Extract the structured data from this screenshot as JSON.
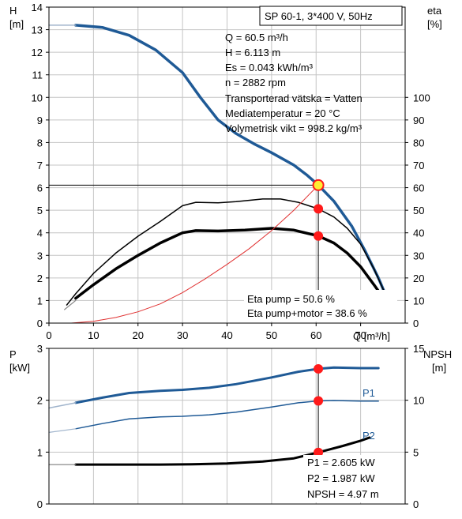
{
  "header": {
    "title": "SP 60-1, 3*400 V, 50Hz"
  },
  "operating_point": {
    "lines": [
      "Q = 60.5 m³/h",
      "H = 6.113 m",
      "Es = 0.043 kWh/m³",
      "n = 2882 rpm",
      "Transporterad vätska = Vatten",
      "Mediatemperatur = 20 °C",
      "Volymetrisk vikt = 998.2 kg/m³"
    ],
    "eta_lines": [
      "Eta pump = 50.6 %",
      "Eta pump+motor = 38.6 %"
    ],
    "power_lines": [
      "P1 = 2.605 kW",
      "P2 = 1.987 kW",
      "NPSH = 4.97 m"
    ]
  },
  "colors": {
    "blue": "#1f5a96",
    "black": "#000000",
    "red_dot": "#ff1a1a",
    "thin_red": "#e03030",
    "yellow": "#ffee33",
    "grid": "#c4c4c4"
  },
  "chart_data": [
    {
      "type": "line",
      "title": "",
      "xlabel": "Q [m³/h]",
      "ylabel_left": [
        "H",
        "[m]"
      ],
      "ylabel_right": [
        "eta",
        "[%]"
      ],
      "xlim": [
        0,
        80
      ],
      "ylim_left": [
        0,
        14
      ],
      "ylim_right": [
        0,
        140
      ],
      "x_ticks": [
        0,
        10,
        20,
        30,
        40,
        50,
        60,
        70
      ],
      "y_left_ticks": [
        0,
        1,
        2,
        3,
        4,
        5,
        6,
        7,
        8,
        9,
        10,
        11,
        12,
        13,
        14
      ],
      "y_right_ticks": [
        0,
        10,
        20,
        30,
        40,
        50,
        60,
        70,
        80,
        90,
        100
      ],
      "grid": true,
      "series": [
        {
          "key": "head",
          "axis": "left",
          "color": "#1f5a96",
          "width": 3.5,
          "points": [
            [
              6,
              13.2
            ],
            [
              12,
              13.1
            ],
            [
              18,
              12.75
            ],
            [
              24,
              12.1
            ],
            [
              30,
              11.1
            ],
            [
              34,
              10.0
            ],
            [
              38,
              9.0
            ],
            [
              42,
              8.4
            ],
            [
              46,
              7.95
            ],
            [
              50,
              7.55
            ],
            [
              55,
              7.0
            ],
            [
              58,
              6.55
            ],
            [
              60.5,
              6.113
            ],
            [
              64,
              5.4
            ],
            [
              68,
              4.3
            ],
            [
              71,
              3.2
            ],
            [
              74,
              2.0
            ],
            [
              77,
              0.6
            ]
          ]
        },
        {
          "key": "head_stub",
          "axis": "left",
          "color": "#a0b4cc",
          "width": 1.5,
          "points": [
            [
              0,
              13.2
            ],
            [
              6,
              13.2
            ]
          ]
        },
        {
          "key": "eta_pump",
          "axis": "right",
          "color": "#000000",
          "width": 1.5,
          "points": [
            [
              4,
              8
            ],
            [
              6,
              13
            ],
            [
              10,
              22
            ],
            [
              15,
              31
            ],
            [
              20,
              38.5
            ],
            [
              25,
              45
            ],
            [
              30,
              52
            ],
            [
              33,
              53.5
            ],
            [
              38,
              53.3
            ],
            [
              42,
              53.8
            ],
            [
              48,
              55
            ],
            [
              52,
              55
            ],
            [
              56,
              53.5
            ],
            [
              60.5,
              50.6
            ],
            [
              64,
              47
            ],
            [
              67,
              42
            ],
            [
              70,
              35
            ],
            [
              73,
              24
            ],
            [
              76,
              11
            ]
          ]
        },
        {
          "key": "eta_pump_motor",
          "axis": "right",
          "color": "#000000",
          "width": 3.5,
          "points": [
            [
              6,
              11
            ],
            [
              10,
              17
            ],
            [
              15,
              24
            ],
            [
              20,
              30
            ],
            [
              25,
              35.5
            ],
            [
              30,
              40
            ],
            [
              33,
              41
            ],
            [
              38,
              40.8
            ],
            [
              44,
              41.2
            ],
            [
              50,
              42
            ],
            [
              55,
              41.2
            ],
            [
              60.5,
              38.6
            ],
            [
              64,
              35.5
            ],
            [
              67,
              31
            ],
            [
              70,
              25
            ],
            [
              73,
              17
            ],
            [
              75.5,
              10
            ]
          ]
        },
        {
          "key": "eta_stub",
          "axis": "right",
          "color": "#888888",
          "width": 1.2,
          "points": [
            [
              3.5,
              6
            ],
            [
              6,
              10
            ]
          ]
        },
        {
          "key": "system",
          "axis": "left",
          "color": "#e03030",
          "width": 1,
          "points": [
            [
              5,
              0.0
            ],
            [
              10,
              0.08
            ],
            [
              15,
              0.25
            ],
            [
              20,
              0.5
            ],
            [
              25,
              0.85
            ],
            [
              30,
              1.35
            ],
            [
              35,
              1.95
            ],
            [
              40,
              2.6
            ],
            [
              45,
              3.3
            ],
            [
              50,
              4.1
            ],
            [
              55,
              5.0
            ],
            [
              60.5,
              6.113
            ]
          ]
        }
      ],
      "markers": [
        {
          "axis": "left",
          "x": 60.5,
          "y": 6.113,
          "style": "ring"
        },
        {
          "axis": "right",
          "x": 60.5,
          "y": 50.6,
          "style": "dot"
        },
        {
          "axis": "right",
          "x": 60.5,
          "y": 38.6,
          "style": "dot"
        }
      ],
      "operating_line_h": 6.113,
      "operating_line_q": 60.5
    },
    {
      "type": "line",
      "title": "",
      "xlabel": "",
      "ylabel_left": [
        "P",
        "[kW]"
      ],
      "ylabel_right": [
        "NPSH",
        "[m]"
      ],
      "xlim": [
        0,
        80
      ],
      "ylim_left": [
        0,
        3
      ],
      "ylim_right": [
        0,
        15
      ],
      "y_left_ticks": [
        0,
        1,
        2,
        3
      ],
      "y_right_ticks": [
        0,
        5,
        10,
        15
      ],
      "grid": true,
      "series": [
        {
          "key": "p1",
          "axis": "left",
          "name": "P1",
          "color": "#1f5a96",
          "width": 3,
          "points": [
            [
              6,
              1.95
            ],
            [
              12,
              2.05
            ],
            [
              18,
              2.14
            ],
            [
              25,
              2.18
            ],
            [
              30,
              2.2
            ],
            [
              36,
              2.24
            ],
            [
              42,
              2.31
            ],
            [
              50,
              2.44
            ],
            [
              56,
              2.55
            ],
            [
              60.5,
              2.605
            ],
            [
              64,
              2.63
            ],
            [
              70,
              2.62
            ],
            [
              74,
              2.62
            ]
          ]
        },
        {
          "key": "p1_stub",
          "axis": "left",
          "color": "#a0b4cc",
          "width": 1.5,
          "points": [
            [
              0,
              1.85
            ],
            [
              6,
              1.95
            ]
          ]
        },
        {
          "key": "p2",
          "axis": "left",
          "name": "P2",
          "color": "#1f5a96",
          "width": 1.5,
          "points": [
            [
              6,
              1.45
            ],
            [
              12,
              1.55
            ],
            [
              18,
              1.64
            ],
            [
              25,
              1.68
            ],
            [
              30,
              1.69
            ],
            [
              36,
              1.72
            ],
            [
              42,
              1.77
            ],
            [
              50,
              1.87
            ],
            [
              56,
              1.95
            ],
            [
              60.5,
              1.987
            ],
            [
              64,
              1.995
            ],
            [
              70,
              1.985
            ],
            [
              74,
              1.985
            ]
          ]
        },
        {
          "key": "p2_stub",
          "axis": "left",
          "color": "#a0b4cc",
          "width": 1.2,
          "points": [
            [
              0,
              1.38
            ],
            [
              6,
              1.45
            ]
          ]
        },
        {
          "key": "npsh",
          "axis": "right",
          "color": "#000000",
          "width": 3,
          "points": [
            [
              6,
              3.8
            ],
            [
              15,
              3.8
            ],
            [
              25,
              3.8
            ],
            [
              32,
              3.82
            ],
            [
              40,
              3.9
            ],
            [
              48,
              4.1
            ],
            [
              55,
              4.4
            ],
            [
              60.5,
              4.97
            ],
            [
              66,
              5.6
            ],
            [
              70,
              6.1
            ],
            [
              72,
              6.4
            ]
          ]
        },
        {
          "key": "npsh_stub",
          "axis": "right",
          "color": "#888888",
          "width": 1.2,
          "points": [
            [
              0,
              3.8
            ],
            [
              6,
              3.8
            ]
          ]
        }
      ],
      "markers": [
        {
          "axis": "left",
          "x": 60.5,
          "y": 2.605,
          "style": "dot"
        },
        {
          "axis": "left",
          "x": 60.5,
          "y": 1.987,
          "style": "dot"
        },
        {
          "axis": "right",
          "x": 60.5,
          "y": 4.97,
          "style": "dot"
        }
      ]
    }
  ]
}
